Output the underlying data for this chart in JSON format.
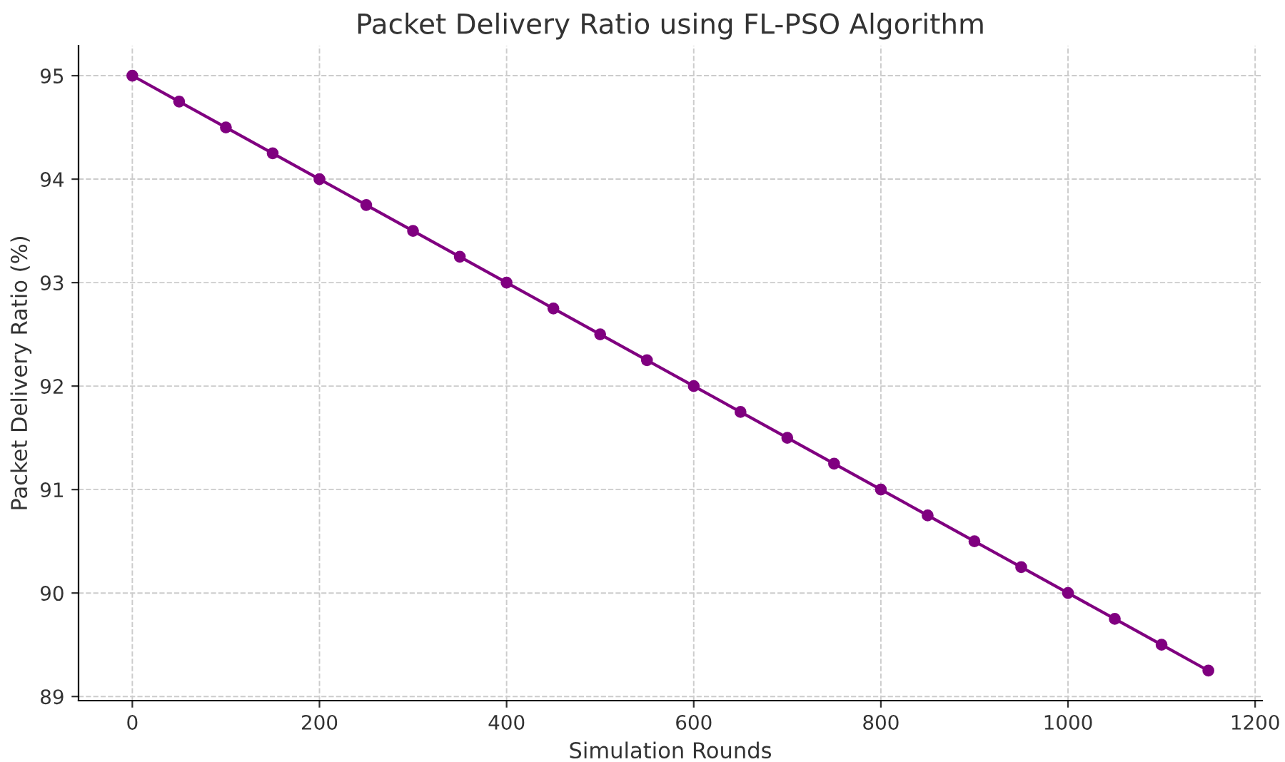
{
  "chart_data": {
    "type": "line",
    "title": "Packet Delivery Ratio using FL-PSO Algorithm",
    "xlabel": "Simulation Rounds",
    "ylabel": "Packet Delivery Ratio (%)",
    "x": [
      0,
      50,
      100,
      150,
      200,
      250,
      300,
      350,
      400,
      450,
      500,
      550,
      600,
      650,
      700,
      750,
      800,
      850,
      900,
      950,
      1000,
      1050,
      1100,
      1150
    ],
    "series": [
      {
        "color": "#800080",
        "values": [
          95,
          94.75,
          94.5,
          94.25,
          94,
          93.75,
          93.5,
          93.25,
          93,
          92.75,
          92.5,
          92.25,
          92,
          91.75,
          91.5,
          91.25,
          91,
          90.75,
          90.5,
          90.25,
          90,
          89.75,
          89.5,
          89.25
        ]
      }
    ],
    "xlim": [
      -57.5,
      1207.5
    ],
    "xticks": [
      0,
      200,
      400,
      600,
      800,
      1000,
      1200
    ],
    "ylim": [
      88.96,
      95.29
    ],
    "yticks": [
      89,
      90,
      91,
      92,
      93,
      94,
      95
    ],
    "grid": true,
    "marker": "circle",
    "line_style": "solid"
  }
}
